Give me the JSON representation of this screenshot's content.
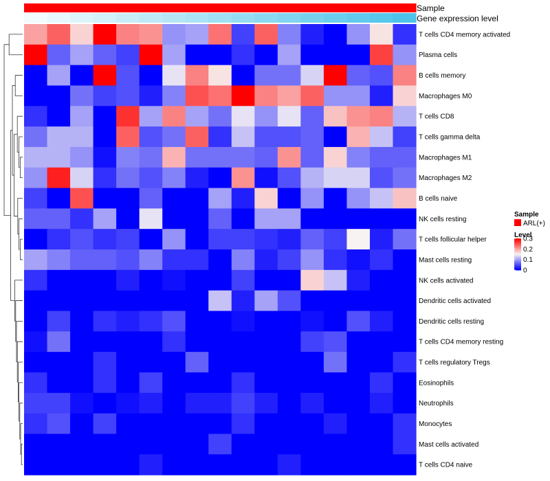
{
  "chart_data": {
    "type": "heatmap",
    "title": "",
    "columns_count": 17,
    "annotations": [
      {
        "name": "Sample",
        "type": "categorical",
        "level": "ARL(+)",
        "color": "#ff0000"
      },
      {
        "name": "Gene expression level",
        "type": "continuous",
        "low_color": "#f2fbfd",
        "high_color": "#4dc3ea"
      }
    ],
    "rows": [
      "T cells CD4 memory activated",
      "Plasma cells",
      "B cells memory",
      "Macrophages M0",
      "T cells CD8",
      "T cells gamma delta",
      "Macrophages M1",
      "Macrophages M2",
      "B cells naive",
      "NK cells resting",
      "T cells follicular helper",
      "Mast cells resting",
      "NK cells activated",
      "Dendritic cells activated",
      "Dendritic cells resting",
      "T cells CD4 memory resting",
      "T cells regulatory  Tregs",
      "Eosinophils",
      "Neutrophils",
      "Monocytes",
      "Mast cells activated",
      "T cells CD4 naive"
    ],
    "values": [
      [
        0.2,
        0.24,
        0.17,
        0.32,
        0.22,
        0.21,
        0.09,
        0.1,
        0.23,
        0.04,
        0.24,
        0.08,
        0.02,
        0.0,
        0.09,
        0.16,
        0.03
      ],
      [
        0.31,
        0.06,
        0.1,
        0.06,
        0.04,
        0.31,
        0.1,
        0.0,
        0.0,
        0.03,
        0.0,
        0.1,
        0.0,
        0.0,
        0.0,
        0.26,
        0.09
      ],
      [
        0.0,
        0.1,
        0.0,
        0.32,
        0.05,
        0.0,
        0.14,
        0.22,
        0.16,
        0.0,
        0.07,
        0.07,
        0.13,
        0.32,
        0.06,
        0.05,
        0.22
      ],
      [
        0.0,
        0.0,
        0.07,
        0.04,
        0.05,
        0.02,
        0.08,
        0.25,
        0.23,
        0.31,
        0.22,
        0.2,
        0.24,
        0.09,
        0.09,
        0.02,
        0.17
      ],
      [
        0.03,
        0.0,
        0.1,
        0.0,
        0.27,
        0.1,
        0.22,
        0.1,
        0.07,
        0.14,
        0.09,
        0.14,
        0.06,
        0.18,
        0.21,
        0.22,
        0.11
      ],
      [
        0.07,
        0.11,
        0.11,
        0.0,
        0.24,
        0.05,
        0.07,
        0.24,
        0.03,
        0.12,
        0.05,
        0.05,
        0.06,
        0.0,
        0.19,
        0.12,
        0.04
      ],
      [
        0.11,
        0.11,
        0.09,
        0.01,
        0.08,
        0.07,
        0.19,
        0.07,
        0.07,
        0.07,
        0.06,
        0.21,
        0.06,
        0.17,
        0.08,
        0.06,
        0.06
      ],
      [
        0.09,
        0.28,
        0.13,
        0.03,
        0.07,
        0.05,
        0.08,
        0.02,
        0.0,
        0.21,
        0.01,
        0.05,
        0.11,
        0.13,
        0.13,
        0.05,
        0.07
      ],
      [
        0.04,
        0.0,
        0.25,
        0.0,
        0.0,
        0.06,
        0.0,
        0.0,
        0.1,
        0.02,
        0.17,
        0.0,
        0.09,
        0.0,
        0.09,
        0.12,
        0.18
      ],
      [
        0.06,
        0.06,
        0.03,
        0.1,
        0.0,
        0.14,
        0.0,
        0.0,
        0.06,
        0.0,
        0.1,
        0.1,
        0.0,
        0.0,
        0.0,
        0.0,
        0.0
      ],
      [
        0.0,
        0.03,
        0.05,
        0.03,
        0.04,
        0.0,
        0.09,
        0.0,
        0.04,
        0.04,
        0.03,
        0.02,
        0.06,
        0.04,
        0.15,
        0.02,
        0.07
      ],
      [
        0.1,
        0.08,
        0.06,
        0.06,
        0.05,
        0.08,
        0.03,
        0.03,
        0.0,
        0.08,
        0.02,
        0.04,
        0.09,
        0.03,
        0.01,
        0.03,
        0.0
      ],
      [
        0.03,
        0.0,
        0.0,
        0.0,
        0.02,
        0.0,
        0.01,
        0.0,
        0.0,
        0.04,
        0.0,
        0.0,
        0.17,
        0.12,
        0.02,
        0.0,
        0.0
      ],
      [
        0.0,
        0.0,
        0.0,
        0.0,
        0.0,
        0.0,
        0.0,
        0.0,
        0.12,
        0.02,
        0.1,
        0.05,
        0.0,
        0.0,
        0.0,
        0.0,
        0.0
      ],
      [
        0.0,
        0.04,
        0.0,
        0.03,
        0.02,
        0.03,
        0.05,
        0.0,
        0.0,
        0.01,
        0.0,
        0.0,
        0.01,
        0.0,
        0.05,
        0.02,
        0.0
      ],
      [
        0.01,
        0.07,
        0.0,
        0.0,
        0.0,
        0.0,
        0.03,
        0.0,
        0.0,
        0.0,
        0.0,
        0.0,
        0.04,
        0.05,
        0.0,
        0.0,
        0.0
      ],
      [
        0.0,
        0.0,
        0.0,
        0.03,
        0.0,
        0.0,
        0.0,
        0.06,
        0.0,
        0.0,
        0.0,
        0.0,
        0.0,
        0.07,
        0.0,
        0.0,
        0.03
      ],
      [
        0.03,
        0.0,
        0.0,
        0.03,
        0.0,
        0.04,
        0.0,
        0.0,
        0.0,
        0.03,
        0.0,
        0.0,
        0.0,
        0.0,
        0.0,
        0.03,
        0.0
      ],
      [
        0.04,
        0.04,
        0.01,
        0.0,
        0.01,
        0.02,
        0.0,
        0.02,
        0.02,
        0.04,
        0.02,
        0.0,
        0.02,
        0.0,
        0.0,
        0.02,
        0.0
      ],
      [
        0.03,
        0.05,
        0.0,
        0.04,
        0.0,
        0.0,
        0.0,
        0.0,
        0.0,
        0.03,
        0.0,
        0.0,
        0.0,
        0.02,
        0.0,
        0.0,
        0.03
      ],
      [
        0.0,
        0.0,
        0.0,
        0.0,
        0.0,
        0.0,
        0.0,
        0.0,
        0.04,
        0.0,
        0.0,
        0.0,
        0.0,
        0.0,
        0.0,
        0.0,
        0.03
      ],
      [
        0.0,
        0.0,
        0.0,
        0.0,
        0.0,
        0.02,
        0.0,
        0.0,
        0.0,
        0.0,
        0.0,
        0.02,
        0.0,
        0.0,
        0.0,
        0.0,
        0.0
      ]
    ],
    "color_scale": {
      "min": 0,
      "mid": 0.15,
      "max": 0.3,
      "low_color": "#0000ff",
      "mid_color": "#f8f3f3",
      "high_color": "#ff0000"
    },
    "legend": {
      "position": "right",
      "sample_title": "Sample",
      "sample_entry": "ARL(+)",
      "level_title": "Level",
      "ticks": [
        "0.3",
        "0.2",
        "0.1",
        "0"
      ],
      "tick_values": [
        0.3,
        0.2,
        0.1,
        0
      ]
    }
  }
}
